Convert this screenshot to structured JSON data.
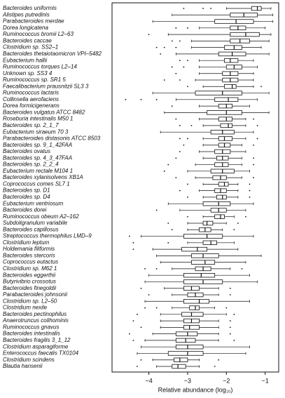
{
  "chart_data": {
    "type": "boxplot",
    "orientation": "horizontal",
    "x_label": "Relative abundance (log₁₀)",
    "xlim": [
      -4.95,
      -0.65
    ],
    "xticks": [
      {
        "value": -4,
        "label": "−4"
      },
      {
        "value": -3,
        "label": "−3"
      },
      {
        "value": -2,
        "label": "−2"
      },
      {
        "value": -1,
        "label": "−1"
      }
    ],
    "color": "#111111",
    "categories": [
      "Bacteroides uniformis",
      "Alistipes putredinis",
      "Parabacteroides merdae",
      "Dorea longicatena",
      "Ruminococcus bromii L2–63",
      "Bacteroides caccae",
      "Clostridium sp. SS2–1",
      "Bacteroides thetaiotaomicron VPI–5482",
      "Eubacterium hallii",
      "Ruminococcus torques L2–14",
      "Unknown sp. SS3 4",
      "Ruminococcus sp. SR1 5",
      "Faecalibacterium prausnitzii SL3 3",
      "Ruminococcus lactaris",
      "Collinsella aerofaciens",
      "Dorea formicigenerans",
      "Bacteroides vulgatus ATCC 8482",
      "Roseburia intestinalis M50 1",
      "Bacteroides sp. 2_1_7",
      "Eubacterium siraeum 70 3",
      "Parabacteroides distasonis ATCC 8503",
      "Bacteroides sp. 9_1_42FAA",
      "Bacteroides ovatus",
      "Bacteroides sp. 4_3_47FAA",
      "Bacteroides sp. 2_2_4",
      "Eubacterium rectale M104 1",
      "Bacteroides xylanisolvens XB1A",
      "Coprococcus comes SL7 1",
      "Bacteroides sp. D1",
      "Bacteroides sp. D4",
      "Eubacterium ventriosum",
      "Bacteroides dorei",
      "Ruminococcus obeum A2–162",
      "Subdoligranulum variabile",
      "Bacteroides capillosus",
      "Streptococcus thermophilus LMD–9",
      "Clostridium leptum",
      "Holdemania filiformis",
      "Bacteroides stercoris",
      "Coprococcus eutactus",
      "Clostridium sp. M62 1",
      "Bacteroides eggerthii",
      "Butyrivibrio crossotus",
      "Bacteroides finegoldii",
      "Parabacteroides johnsonii",
      "Clostridium sp. L2–50",
      "Clostridium nexile",
      "Bacteroides pectinophilus",
      "Anaerotruncus colihominis",
      "Ruminococcus gnavus",
      "Bacteroides intestinalis",
      "Bacteroides fragilis 3_1_12",
      "Clostridium asparagiforme",
      "Enterococcus faecalis TX0104",
      "Clostridium scindens",
      "Blautia hansenii"
    ],
    "boxes": [
      [
        -2.0,
        -1.35,
        -1.2,
        -1.1,
        -0.85
      ],
      [
        -3.4,
        -1.9,
        -1.55,
        -1.2,
        -0.8
      ],
      [
        -3.9,
        -2.3,
        -1.75,
        -1.3,
        -0.8
      ],
      [
        -2.7,
        -1.9,
        -1.7,
        -1.5,
        -1.0
      ],
      [
        -3.5,
        -1.9,
        -1.5,
        -1.15,
        -0.85
      ],
      [
        -2.9,
        -1.9,
        -1.65,
        -1.4,
        -0.9
      ],
      [
        -2.9,
        -2.05,
        -1.8,
        -1.6,
        -1.1
      ],
      [
        -3.3,
        -2.2,
        -1.85,
        -1.5,
        -0.9
      ],
      [
        -2.7,
        -2.05,
        -1.9,
        -1.7,
        -1.3
      ],
      [
        -2.7,
        -2.0,
        -1.8,
        -1.6,
        -1.2
      ],
      [
        -2.7,
        -2.1,
        -1.9,
        -1.7,
        -1.3
      ],
      [
        -2.8,
        -2.1,
        -1.9,
        -1.7,
        -1.3
      ],
      [
        -2.6,
        -2.05,
        -1.85,
        -1.75,
        -1.3
      ],
      [
        -3.9,
        -2.8,
        -2.1,
        -1.6,
        -0.9
      ],
      [
        -3.3,
        -2.3,
        -1.95,
        -1.7,
        -1.2
      ],
      [
        -2.7,
        -2.2,
        -2.0,
        -1.85,
        -1.4
      ],
      [
        -3.6,
        -2.5,
        -2.0,
        -1.6,
        -0.9
      ],
      [
        -2.7,
        -2.2,
        -2.0,
        -1.85,
        -1.5
      ],
      [
        -2.6,
        -2.15,
        -1.95,
        -1.85,
        -1.5
      ],
      [
        -3.7,
        -2.4,
        -2.1,
        -1.8,
        -1.3
      ],
      [
        -2.6,
        -2.2,
        -2.05,
        -1.85,
        -1.5
      ],
      [
        -2.6,
        -2.2,
        -2.05,
        -1.9,
        -1.6
      ],
      [
        -2.7,
        -2.3,
        -2.1,
        -1.9,
        -1.5
      ],
      [
        -2.6,
        -2.25,
        -2.1,
        -1.95,
        -1.6
      ],
      [
        -2.8,
        -2.3,
        -2.1,
        -1.95,
        -1.6
      ],
      [
        -3.0,
        -2.4,
        -2.1,
        -1.8,
        -1.4
      ],
      [
        -2.8,
        -2.35,
        -2.15,
        -2.0,
        -1.6
      ],
      [
        -2.6,
        -2.2,
        -2.05,
        -1.95,
        -1.7
      ],
      [
        -2.7,
        -2.3,
        -2.15,
        -2.0,
        -1.7
      ],
      [
        -2.6,
        -2.25,
        -2.1,
        -2.0,
        -1.7
      ],
      [
        -3.5,
        -2.6,
        -2.2,
        -1.9,
        -1.3
      ],
      [
        -3.2,
        -2.4,
        -2.2,
        -2.0,
        -1.5
      ],
      [
        -2.6,
        -2.3,
        -2.15,
        -2.05,
        -1.8
      ],
      [
        -3.0,
        -2.6,
        -2.5,
        -2.35,
        -2.0
      ],
      [
        -3.0,
        -2.7,
        -2.55,
        -2.4,
        -2.1
      ],
      [
        -4.2,
        -3.1,
        -2.5,
        -2.1,
        -1.3
      ],
      [
        -3.0,
        -2.6,
        -2.4,
        -2.25,
        -1.8
      ],
      [
        -3.9,
        -3.15,
        -2.75,
        -2.5,
        -1.7
      ],
      [
        -3.8,
        -2.9,
        -2.6,
        -2.2,
        -1.1
      ],
      [
        -3.7,
        -2.9,
        -2.55,
        -2.3,
        -1.5
      ],
      [
        -3.4,
        -2.8,
        -2.6,
        -2.4,
        -1.9
      ],
      [
        -4.0,
        -3.1,
        -2.65,
        -2.3,
        -1.4
      ],
      [
        -4.1,
        -3.1,
        -2.6,
        -2.1,
        -1.2
      ],
      [
        -3.6,
        -3.1,
        -2.9,
        -2.7,
        -2.2
      ],
      [
        -3.4,
        -3.0,
        -2.8,
        -2.6,
        -2.2
      ],
      [
        -4.1,
        -3.1,
        -2.7,
        -2.45,
        -1.4
      ],
      [
        -3.4,
        -2.95,
        -2.8,
        -2.7,
        -2.3
      ],
      [
        -3.7,
        -3.15,
        -2.9,
        -2.6,
        -2.0
      ],
      [
        -3.7,
        -3.1,
        -2.9,
        -2.7,
        -2.2
      ],
      [
        -3.7,
        -3.1,
        -2.95,
        -2.7,
        -2.2
      ],
      [
        -3.9,
        -3.3,
        -3.0,
        -2.75,
        -2.2
      ],
      [
        -4.1,
        -3.3,
        -3.05,
        -2.8,
        -2.2
      ],
      [
        -4.2,
        -3.3,
        -3.0,
        -2.6,
        -1.4
      ],
      [
        -4.3,
        -3.5,
        -3.0,
        -2.6,
        -1.5
      ],
      [
        -3.9,
        -3.35,
        -3.2,
        -3.0,
        -2.7
      ],
      [
        -3.8,
        -3.4,
        -3.25,
        -3.05,
        -2.7
      ]
    ],
    "outliers": [
      [
        -3.1,
        -2.6,
        -2.4
      ],
      [],
      [],
      [
        -3.3,
        -3.0
      ],
      [
        -4.0
      ],
      [
        -3.4,
        -3.2
      ],
      [
        -3.8,
        -3.6,
        -3.3
      ],
      [
        -3.7
      ],
      [
        -3.2,
        -3.0
      ],
      [
        -3.4,
        -3.1
      ],
      [
        -3.3
      ],
      [
        -3.6,
        -3.2
      ],
      [
        -3.0,
        -1.1
      ],
      [],
      [
        -4.6,
        -4.2,
        -3.8
      ],
      [
        -3.4
      ],
      [],
      [
        -3.3,
        -1.3
      ],
      [
        -3.2,
        -2.9,
        -1.2
      ],
      [],
      [
        -3.2,
        -3.0,
        -1.2
      ],
      [
        -3.1,
        -1.3
      ],
      [
        -3.2
      ],
      [
        -3.3,
        -1.3
      ],
      [
        -3.5,
        -1.3
      ],
      [
        -3.6
      ],
      [
        -3.3,
        -1.3
      ],
      [
        -3.0,
        -1.4
      ],
      [
        -3.2,
        -1.4
      ],
      [
        -3.0,
        -1.4
      ],
      [],
      [
        -3.8
      ],
      [
        -3.0,
        -1.5
      ],
      [
        -3.5,
        -1.7
      ],
      [
        -3.4,
        -1.8
      ],
      [
        -4.5
      ],
      [
        -4.4,
        -3.5
      ],
      [
        -4.4
      ],
      [],
      [],
      [
        -4.1,
        -3.8,
        -1.6
      ],
      [],
      [],
      [
        -4.2,
        -1.9
      ],
      [
        -4.0,
        -1.9
      ],
      [],
      [
        -4.1,
        -3.8,
        -2.0
      ],
      [
        -4.3,
        -1.8
      ],
      [
        -4.4,
        -1.9
      ],
      [
        -4.2,
        -1.9
      ],
      [
        -4.5,
        -1.9
      ],
      [
        -4.4,
        -1.8
      ],
      [],
      [],
      [
        -4.2,
        -2.2
      ],
      [
        -4.3,
        -2.3
      ]
    ]
  }
}
